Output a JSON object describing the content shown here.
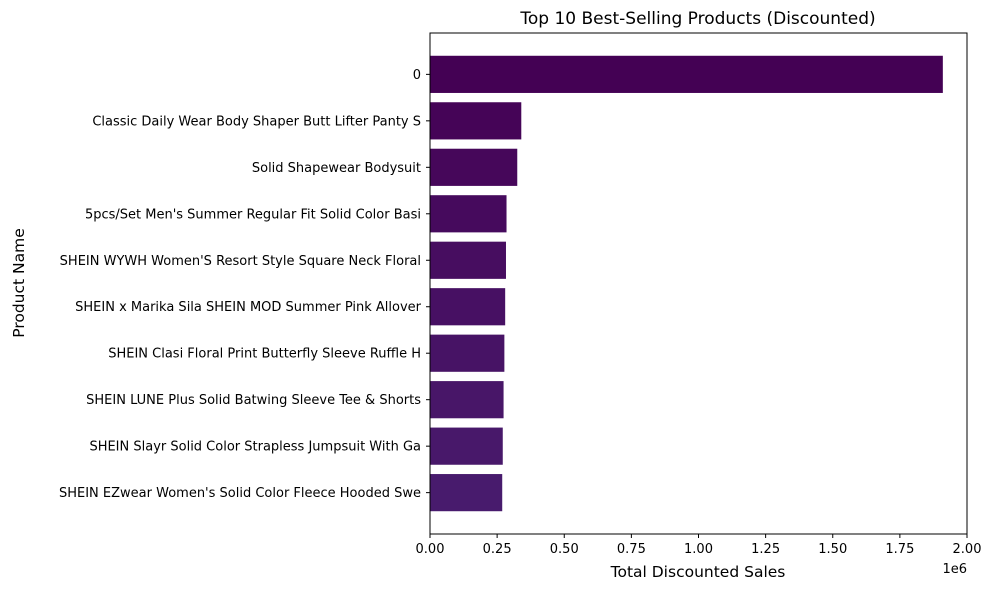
{
  "chart_data": {
    "type": "bar",
    "orientation": "horizontal",
    "title": "Top 10 Best-Selling Products (Discounted)",
    "xlabel": "Total Discounted Sales",
    "ylabel": "Product Name",
    "x_scale_label": "1e6",
    "xlim": [
      0,
      2000000
    ],
    "x_ticks": [
      0,
      250000,
      500000,
      750000,
      1000000,
      1250000,
      1500000,
      1750000,
      2000000
    ],
    "x_tick_labels": [
      "0.00",
      "0.25",
      "0.50",
      "0.75",
      "1.00",
      "1.25",
      "1.50",
      "1.75",
      "2.00"
    ],
    "grid": false,
    "legend": "none",
    "colormap": "viridis",
    "categories": [
      "0",
      "Classic Daily Wear Body Shaper Butt Lifter Panty S",
      "Solid Shapewear Bodysuit",
      "5pcs/Set Men's Summer Regular Fit Solid Color Basi",
      "SHEIN WYWH Women'S Resort Style Square Neck Floral",
      "SHEIN x Marika Sila SHEIN MOD Summer Pink Allover ",
      "SHEIN Clasi Floral Print Butterfly Sleeve Ruffle H",
      "SHEIN LUNE Plus Solid Batwing Sleeve Tee & Shorts",
      "SHEIN Slayr Solid Color Strapless Jumpsuit With Ga",
      "SHEIN EZwear Women's Solid Color Fleece Hooded Swe"
    ],
    "values": [
      1910000,
      340000,
      325000,
      285000,
      283000,
      280000,
      277000,
      274000,
      271000,
      269000
    ],
    "colors": [
      "#440154",
      "#450457",
      "#46075a",
      "#460a5d",
      "#470d60",
      "#471063",
      "#471365",
      "#481668",
      "#48186a",
      "#481b6d"
    ]
  }
}
